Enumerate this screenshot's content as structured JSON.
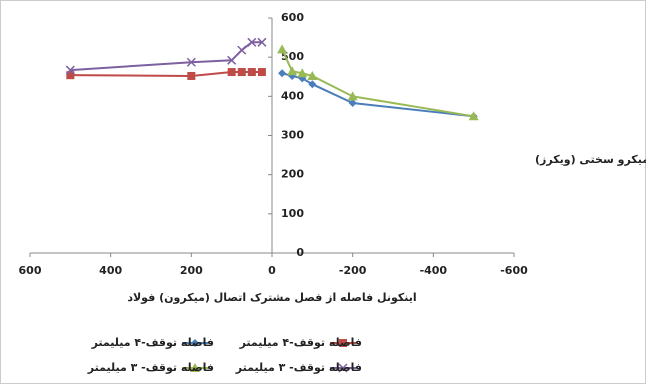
{
  "chart_data": {
    "type": "line",
    "x_label": "اینکونل  فاصله از فصل مشترک اتصال (میکرون)  فولاد",
    "y_label": "میکرو سختی (ویکرز)",
    "xlim": [
      600,
      -600
    ],
    "xticks": [
      600,
      400,
      200,
      0,
      -200,
      -400,
      -600
    ],
    "ylim": [
      0,
      600
    ],
    "yticks": [
      0,
      100,
      200,
      300,
      400,
      500,
      600
    ],
    "series": [
      {
        "name": "فاصله توقف-۴ میلیمتر",
        "color": "#4a7ebb",
        "marker": "diamond",
        "x": [
          -25,
          -50,
          -75,
          -100,
          -200,
          -500
        ],
        "values": [
          459,
          452,
          446,
          431,
          383,
          349
        ]
      },
      {
        "name": "فاصله توقف-۴ میلیمتر",
        "color": "#be4b48",
        "marker": "square",
        "x": [
          500,
          200,
          100,
          75,
          50,
          25
        ],
        "values": [
          454,
          452,
          462,
          462,
          462,
          462
        ]
      },
      {
        "name": "فاصله توقف- ۳ میلیمتر",
        "color": "#98b954",
        "marker": "triangle",
        "x": [
          -25,
          -50,
          -75,
          -100,
          -200,
          -500
        ],
        "values": [
          520,
          464,
          459,
          452,
          400,
          349
        ]
      },
      {
        "name": "فاصله توقف- ۳ میلیمتر",
        "color": "#7d60a0",
        "marker": "cross",
        "x": [
          500,
          200,
          100,
          75,
          50,
          25
        ],
        "values": [
          467,
          487,
          492,
          518,
          538,
          538
        ]
      }
    ]
  }
}
